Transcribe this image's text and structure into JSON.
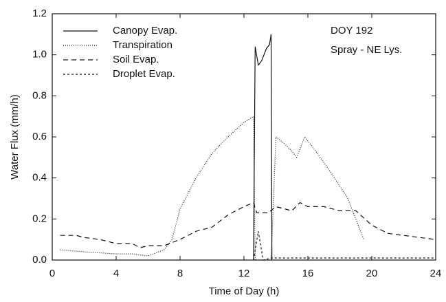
{
  "chart_data": {
    "type": "line",
    "xlabel": "Time of Day (h)",
    "ylabel": "Water Flux (mm/h)",
    "annotations": [
      "DOY 192",
      "Spray - NE Lys."
    ],
    "xlim": [
      0,
      24
    ],
    "xticks": [
      0,
      4,
      8,
      12,
      16,
      20,
      24
    ],
    "ylim": [
      0,
      1.2
    ],
    "yticks": [
      {
        "value": 0,
        "label": "0.0"
      },
      0.2,
      0.4,
      0.6,
      0.8,
      {
        "value": 1,
        "label": "1.0"
      },
      1.2
    ],
    "legend": "upper left",
    "series": [
      {
        "name": "Canopy Evap.",
        "color": "#111111",
        "dash": "none",
        "x": [
          12.6,
          12.7,
          12.9,
          13.1,
          13.4,
          13.6,
          13.7,
          13.75
        ],
        "values": [
          0,
          1.04,
          0.95,
          0.97,
          1.03,
          1.05,
          1.1,
          0
        ]
      },
      {
        "name": "Transpiration",
        "color": "#111111",
        "dash": "1 2",
        "x": [
          0.5,
          2,
          4,
          5,
          6,
          7,
          7.5,
          8,
          9,
          10,
          11,
          12,
          12.6,
          12.7,
          13.7,
          14,
          14.5,
          15,
          15.3,
          15.8,
          16.5,
          17.5,
          18.5,
          19,
          19.5
        ],
        "values": [
          0.05,
          0.04,
          0.03,
          0.03,
          0.02,
          0.05,
          0.1,
          0.25,
          0.4,
          0.52,
          0.6,
          0.67,
          0.7,
          0,
          0,
          0.6,
          0.57,
          0.53,
          0.5,
          0.6,
          0.53,
          0.42,
          0.3,
          0.2,
          0.1
        ]
      },
      {
        "name": "Soil Evap.",
        "color": "#111111",
        "dash": "7 5",
        "x": [
          0.5,
          1.5,
          2,
          3,
          4,
          5,
          5.5,
          6,
          7,
          8,
          9,
          10,
          11,
          12,
          12.6,
          12.8,
          13.5,
          14,
          15,
          15.5,
          16,
          17,
          18,
          19,
          20,
          21,
          22,
          23,
          24
        ],
        "values": [
          0.12,
          0.12,
          0.11,
          0.1,
          0.08,
          0.08,
          0.06,
          0.07,
          0.07,
          0.1,
          0.14,
          0.16,
          0.22,
          0.26,
          0.28,
          0.23,
          0.23,
          0.26,
          0.24,
          0.28,
          0.26,
          0.26,
          0.24,
          0.24,
          0.17,
          0.13,
          0.12,
          0.11,
          0.1
        ]
      },
      {
        "name": "Droplet Evap.",
        "color": "#111111",
        "dash": "3 3",
        "x": [
          12.6,
          12.9,
          13.2,
          13.7,
          16,
          20,
          24
        ],
        "values": [
          0,
          0.14,
          0,
          0.01,
          0.01,
          0.01,
          0.01
        ]
      }
    ]
  }
}
